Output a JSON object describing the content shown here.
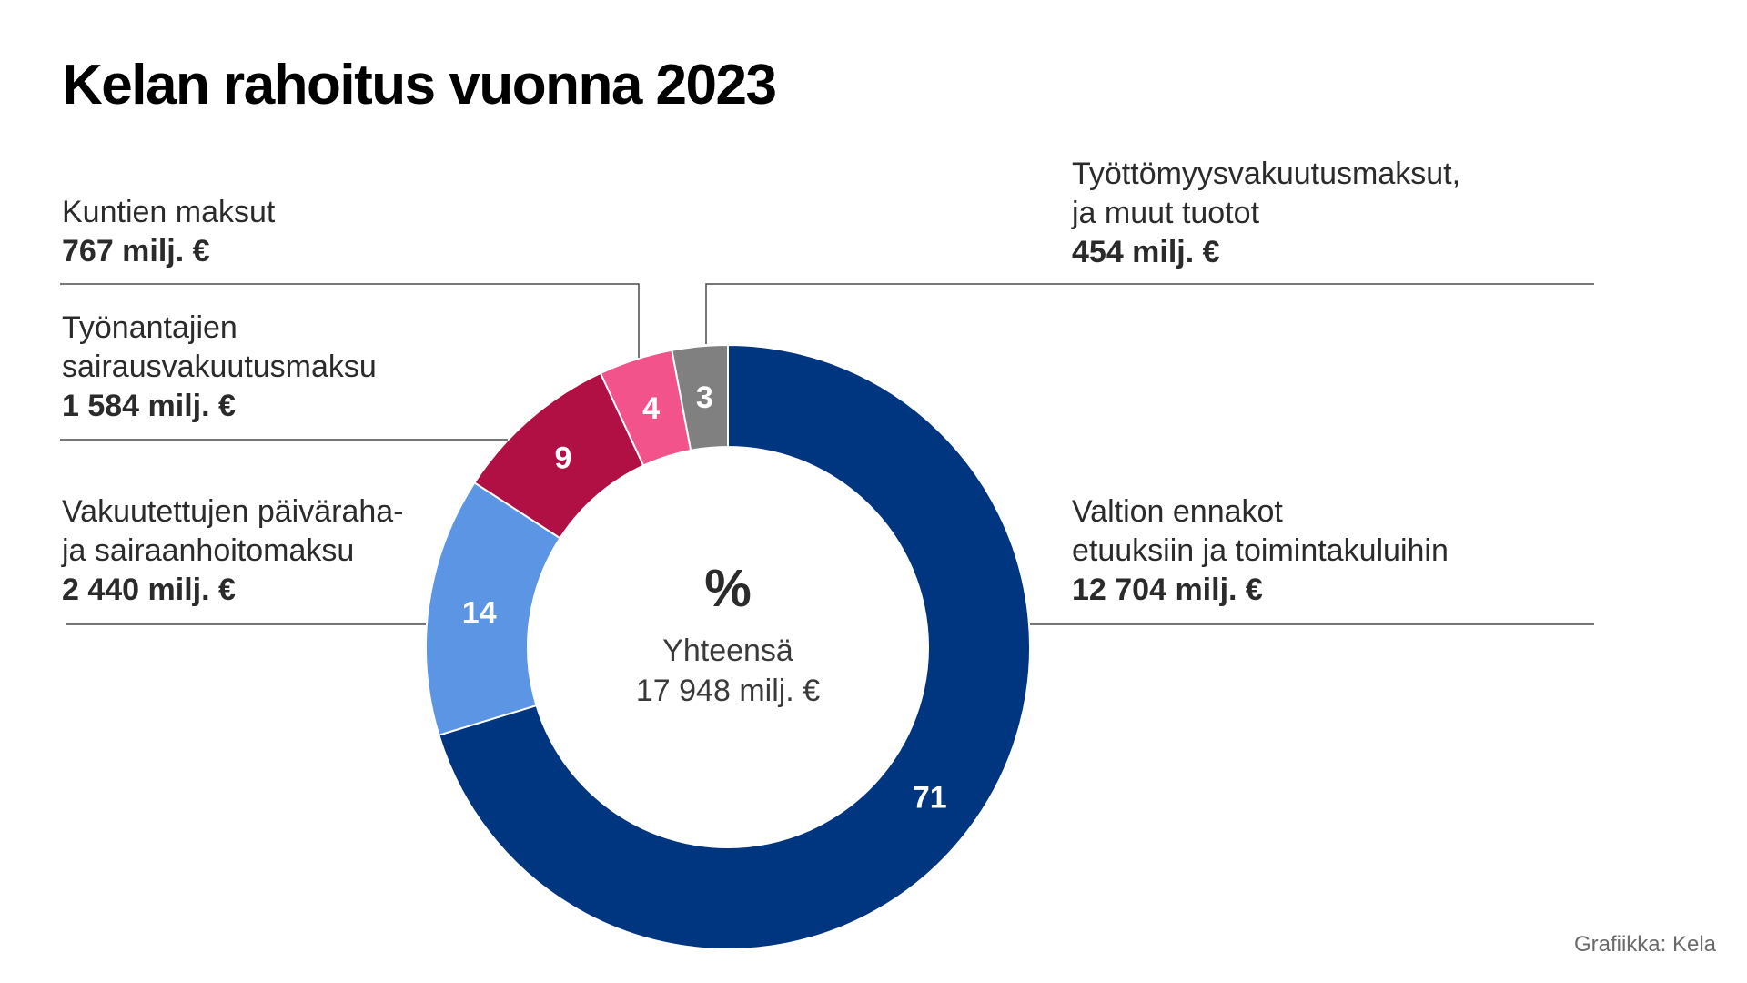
{
  "title": "Kelan rahoitus vuonna 2023",
  "credit": "Grafiikka: Kela",
  "chart_data": {
    "type": "pie",
    "style": "donut",
    "title": "Kelan rahoitus vuonna 2023",
    "center": {
      "symbol": "%",
      "total_label": "Yhteensä",
      "total_value": "17 948 milj. €"
    },
    "slices": [
      {
        "name": "Valtion ennakot etuuksiin ja toimintakuluihin",
        "name_lines": [
          "Valtion ennakot",
          "etuuksiin ja toimintakuluihin"
        ],
        "percent": 71,
        "amount": 12704,
        "amount_label": "12 704 milj. €",
        "color": "#003580"
      },
      {
        "name": "Vakuutettujen päiväraha- ja sairaanhoitomaksu",
        "name_lines": [
          "Vakuutettujen päiväraha-",
          "ja sairaanhoitomaksu"
        ],
        "percent": 14,
        "amount": 2440,
        "amount_label": "2 440 milj. €",
        "color": "#5b95e4"
      },
      {
        "name": "Työnantajien sairausvakuutusmaksu",
        "name_lines": [
          "Työnantajien",
          "sairausvakuutusmaksu"
        ],
        "percent": 9,
        "amount": 1584,
        "amount_label": "1 584 milj. €",
        "color": "#b01043"
      },
      {
        "name": "Kuntien maksut",
        "name_lines": [
          "Kuntien maksut"
        ],
        "percent": 4,
        "amount": 767,
        "amount_label": "767 milj. €",
        "color": "#f2538b"
      },
      {
        "name": "Työttömyysvakuutusmaksut, ja muut tuotot",
        "name_lines": [
          "Työttömyysvakuutusmaksut,",
          "ja muut tuotot"
        ],
        "percent": 3,
        "amount": 454,
        "amount_label": "454 milj. €",
        "color": "#808080"
      }
    ]
  }
}
